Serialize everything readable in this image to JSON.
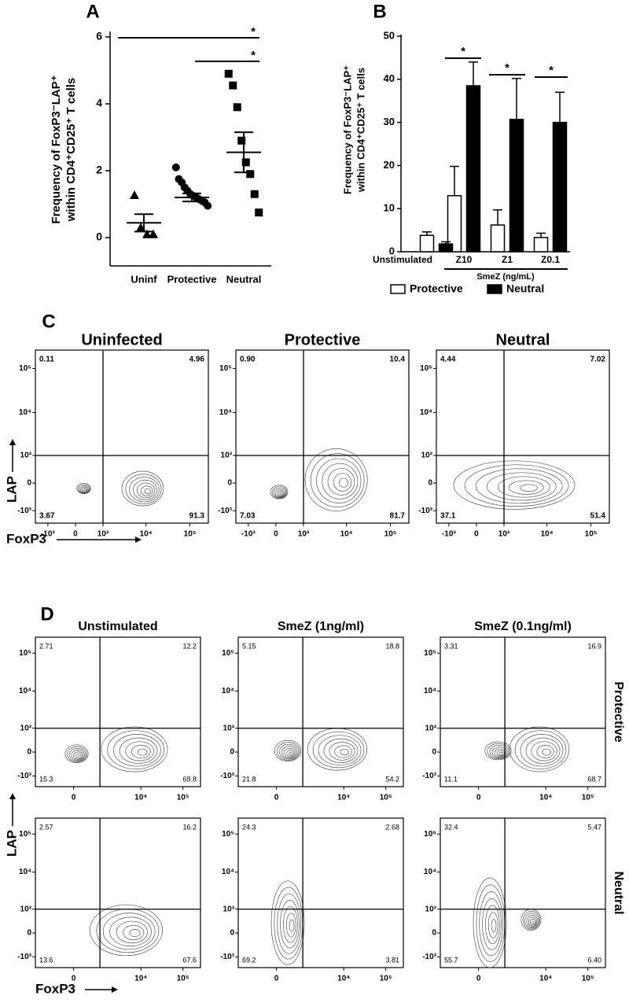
{
  "chart_data": [
    {
      "type": "dotplot",
      "panel": "A",
      "ylabel": [
        "Frequency of FoxP3⁻LAP⁺",
        "within CD4⁺CD25⁺ T cells"
      ],
      "categories": [
        "Uninf",
        "Protective",
        "Neutral"
      ],
      "markers": [
        "triangle",
        "circle",
        "square"
      ],
      "color": "#000000",
      "points": [
        [
          1.27,
          0.3,
          0.1,
          0.1
        ],
        [
          2.1,
          1.75,
          1.65,
          1.5,
          1.4,
          1.3,
          1.25,
          1.2,
          1.15,
          1.1,
          1.05,
          0.95
        ],
        [
          4.9,
          4.55,
          3.9,
          2.9,
          2.25,
          1.9,
          1.3,
          0.75
        ]
      ],
      "means": [
        0.44,
        1.2,
        2.55
      ],
      "sems": [
        0.26,
        0.12,
        0.6
      ],
      "ylim": [
        -0.6,
        6
      ],
      "yticks": [
        0,
        2,
        4,
        6
      ],
      "annotations": [
        "*",
        "*"
      ]
    },
    {
      "type": "bar",
      "panel": "B",
      "ylabel": [
        "Frequency of FoxP3⁻LAP⁺",
        "within CD4⁺CD25⁺ T cells"
      ],
      "categories": [
        "Unstimulated",
        "Z10",
        "Z1",
        "Z0.1"
      ],
      "group_label": "SmeZ (ng/mL)",
      "series": [
        {
          "name": "Protective",
          "color": "#ffffff",
          "values": [
            3.8,
            13,
            6.2,
            3.3
          ],
          "errors": [
            0.8,
            6.8,
            3.5,
            1
          ]
        },
        {
          "name": "Neutral",
          "color": "#000000",
          "values": [
            1.8,
            38.5,
            30.7,
            30
          ],
          "errors": [
            0.5,
            5.5,
            9.5,
            7
          ]
        }
      ],
      "ylim": [
        0,
        50
      ],
      "yticks": [
        0,
        10,
        20,
        30,
        40,
        50
      ],
      "annotations": [
        "*",
        "*",
        "*"
      ]
    },
    {
      "type": "flow",
      "panel": "C",
      "xlabel": "FoxP3",
      "ylabel": "LAP",
      "xlim": [
        -2000,
        262144
      ],
      "ylim": [
        -2000,
        262144
      ],
      "xticks": [
        {
          "value": -1000,
          "label": "-10³"
        },
        0,
        {
          "value": 1000,
          "label": "10³"
        },
        {
          "value": 10000,
          "label": "10⁴"
        },
        {
          "value": 100000,
          "label": "10⁵"
        }
      ],
      "yticks": [
        {
          "value": -1000,
          "label": "-10³"
        },
        0,
        {
          "value": 1000,
          "label": "10³"
        },
        {
          "value": 10000,
          "label": "10⁴"
        },
        {
          "value": 100000,
          "label": "10⁵"
        }
      ],
      "columns": [
        "Uninfected",
        "Protective",
        "Neutral"
      ],
      "plots": [
        [
          {
            "values": [
              0.11,
              4.96,
              3.67,
              91.3
            ]
          },
          {
            "values": [
              0.9,
              10.4,
              7.03,
              81.7
            ],
            "value_labels": [
              "0.90",
              "10.4",
              "7.03",
              "81.7"
            ]
          },
          {
            "values": [
              4.44,
              7.02,
              37.1,
              51.4
            ]
          }
        ]
      ]
    },
    {
      "type": "flow",
      "panel": "D",
      "xlabel": "FoxP3",
      "ylabel": "LAP",
      "xlim": [
        -2000,
        262144
      ],
      "ylim": [
        -2000,
        262144
      ],
      "xticks": [
        0,
        {
          "value": 10000,
          "label": "10⁴"
        },
        {
          "value": 100000,
          "label": "10⁵"
        }
      ],
      "yticks": [
        {
          "value": -1000,
          "label": "-10³"
        },
        0,
        {
          "value": 1000,
          "label": "10³"
        },
        {
          "value": 10000,
          "label": "10⁴"
        },
        {
          "value": 100000,
          "label": "10⁵"
        }
      ],
      "columns": [
        "Unstimulated",
        "SmeZ (1ng/ml)",
        "SmeZ (0.1ng/ml)"
      ],
      "rows": [
        "Protective",
        "Neutral"
      ],
      "plots": [
        [
          {
            "values": [
              2.71,
              12.2,
              15.3,
              69.8
            ]
          },
          {
            "values": [
              5.15,
              18.8,
              21.8,
              54.2
            ]
          },
          {
            "values": [
              3.31,
              16.9,
              11.1,
              68.7
            ]
          }
        ],
        [
          {
            "values": [
              2.57,
              16.2,
              13.6,
              67.6
            ]
          },
          {
            "values": [
              24.3,
              2.68,
              69.2,
              3.81
            ]
          },
          {
            "values": [
              32.4,
              5.47,
              55.7,
              6.4
            ],
            "value_labels": [
              "32.4",
              "5.47",
              "55.7",
              "6.40"
            ]
          }
        ]
      ]
    }
  ]
}
